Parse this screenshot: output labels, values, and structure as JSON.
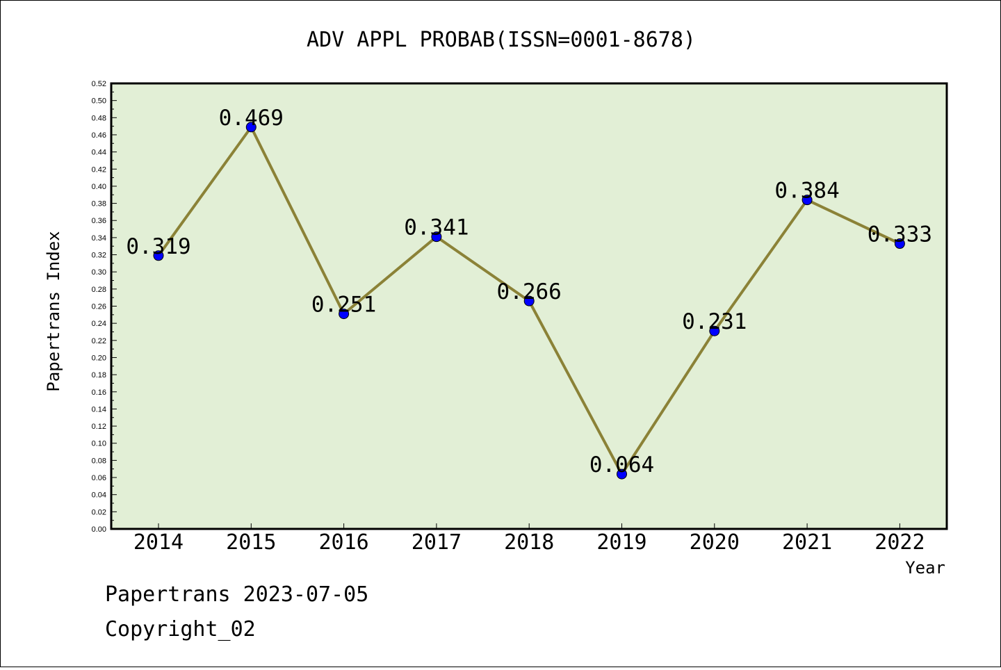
{
  "chart_data": {
    "type": "line",
    "title": "ADV APPL PROBAB(ISSN=0001-8678)",
    "xlabel": "Year",
    "ylabel": "Papertrans Index",
    "categories": [
      "2014",
      "2015",
      "2016",
      "2017",
      "2018",
      "2019",
      "2020",
      "2021",
      "2022"
    ],
    "values": [
      0.319,
      0.469,
      0.251,
      0.341,
      0.266,
      0.064,
      0.231,
      0.384,
      0.333
    ],
    "data_labels": [
      "0.319",
      "0.469",
      "0.251",
      "0.341",
      "0.266",
      "0.064",
      "0.231",
      "0.384",
      "0.333"
    ],
    "ylim": [
      0,
      0.52
    ],
    "yticks": [
      "0.00",
      "0.02",
      "0.04",
      "0.06",
      "0.08",
      "0.10",
      "0.12",
      "0.14",
      "0.16",
      "0.18",
      "0.20",
      "0.22",
      "0.24",
      "0.26",
      "0.28",
      "0.30",
      "0.32",
      "0.34",
      "0.36",
      "0.38",
      "0.40",
      "0.42",
      "0.44",
      "0.46",
      "0.48",
      "0.50",
      "0.52"
    ],
    "grid": false,
    "colors": {
      "plot_background": "#e2efd6",
      "line": "#8b8237",
      "marker": "#0000ff"
    }
  },
  "footer": {
    "line1": "Papertrans 2023-07-05",
    "line2": "Copyright_02"
  }
}
